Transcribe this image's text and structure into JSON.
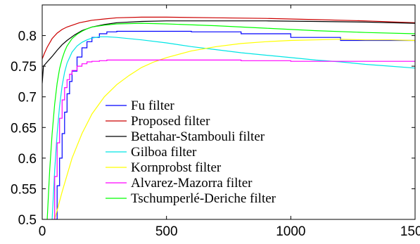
{
  "chart_data": {
    "type": "line",
    "title": "",
    "xlabel": "",
    "ylabel": "",
    "xlim": [
      0,
      1500
    ],
    "ylim": [
      0.5,
      0.85
    ],
    "xticks": [
      0,
      500,
      1000,
      1500
    ],
    "xtick_labels": [
      "0",
      "500",
      "1000",
      "1500"
    ],
    "yticks": [
      0.5,
      0.55,
      0.6,
      0.65,
      0.7,
      0.75,
      0.8
    ],
    "ytick_labels": [
      "0.5",
      "0.55",
      "0.6",
      "0.65",
      "0.7",
      "0.75",
      "0.8"
    ],
    "grid": false,
    "legend_position": "center",
    "series": [
      {
        "name": "Fu filter",
        "color": "#0000ff",
        "style": "step",
        "x": [
          50,
          60,
          70,
          80,
          90,
          100,
          110,
          120,
          140,
          160,
          180,
          200,
          230,
          260,
          300,
          400,
          600,
          800,
          1000,
          1200,
          1500
        ],
        "y": [
          0.5,
          0.555,
          0.6,
          0.64,
          0.675,
          0.705,
          0.725,
          0.742,
          0.765,
          0.78,
          0.79,
          0.797,
          0.803,
          0.806,
          0.807,
          0.807,
          0.806,
          0.803,
          0.797,
          0.792,
          0.788
        ]
      },
      {
        "name": "Proposed filter",
        "color": "#cc0000",
        "style": "line",
        "x": [
          0,
          10,
          20,
          40,
          60,
          80,
          100,
          150,
          200,
          250,
          300,
          400,
          500,
          700,
          900,
          1100,
          1300,
          1500
        ],
        "y": [
          0.762,
          0.772,
          0.781,
          0.795,
          0.804,
          0.81,
          0.814,
          0.821,
          0.825,
          0.827,
          0.829,
          0.83,
          0.83,
          0.829,
          0.828,
          0.826,
          0.824,
          0.821
        ]
      },
      {
        "name": "Bettahar-Stambouli filter",
        "color": "#000000",
        "style": "line",
        "x": [
          0,
          5,
          20,
          40,
          60,
          80,
          100,
          130,
          160,
          200,
          250,
          300,
          400,
          500,
          700,
          900,
          1100,
          1300,
          1500
        ],
        "y": [
          0.722,
          0.75,
          0.757,
          0.766,
          0.776,
          0.785,
          0.792,
          0.801,
          0.808,
          0.814,
          0.818,
          0.821,
          0.823,
          0.824,
          0.824,
          0.824,
          0.823,
          0.822,
          0.82
        ]
      },
      {
        "name": "Gilboa filter",
        "color": "#00e5e5",
        "style": "line",
        "x": [
          40,
          50,
          60,
          70,
          80,
          90,
          100,
          120,
          140,
          160,
          180,
          200,
          230,
          260,
          300,
          400,
          500,
          600,
          700,
          800,
          900,
          1000,
          1100,
          1200,
          1300,
          1400,
          1500
        ],
        "y": [
          0.5,
          0.58,
          0.64,
          0.685,
          0.718,
          0.74,
          0.755,
          0.773,
          0.783,
          0.789,
          0.793,
          0.796,
          0.798,
          0.798,
          0.797,
          0.793,
          0.788,
          0.782,
          0.777,
          0.772,
          0.768,
          0.764,
          0.76,
          0.757,
          0.753,
          0.75,
          0.747
        ]
      },
      {
        "name": "Kornprobst filter",
        "color": "#ffff00",
        "style": "line",
        "x": [
          50,
          80,
          120,
          160,
          200,
          250,
          300,
          350,
          400,
          450,
          500,
          600,
          700,
          800,
          900,
          1000,
          1100,
          1200,
          1300,
          1400,
          1500
        ],
        "y": [
          0.5,
          0.545,
          0.6,
          0.64,
          0.672,
          0.7,
          0.72,
          0.735,
          0.748,
          0.757,
          0.764,
          0.775,
          0.782,
          0.787,
          0.79,
          0.792,
          0.793,
          0.794,
          0.793,
          0.793,
          0.792
        ]
      },
      {
        "name": "Alvarez-Mazorra filter",
        "color": "#ff00ff",
        "style": "step",
        "x": [
          40,
          50,
          60,
          70,
          80,
          90,
          100,
          110,
          120,
          140,
          160,
          180,
          200,
          230,
          260,
          300,
          400,
          600,
          800,
          1000,
          1200,
          1500
        ],
        "y": [
          0.5,
          0.57,
          0.625,
          0.665,
          0.695,
          0.715,
          0.728,
          0.737,
          0.743,
          0.75,
          0.754,
          0.757,
          0.758,
          0.759,
          0.76,
          0.76,
          0.76,
          0.76,
          0.759,
          0.758,
          0.758,
          0.757
        ]
      },
      {
        "name": "Tschumperlé-Deriche filter",
        "color": "#00ff00",
        "style": "line",
        "x": [
          20,
          30,
          40,
          50,
          60,
          70,
          80,
          90,
          100,
          120,
          140,
          160,
          180,
          200,
          250,
          300,
          400,
          500,
          700,
          900,
          1100,
          1300,
          1500
        ],
        "y": [
          0.5,
          0.58,
          0.64,
          0.688,
          0.722,
          0.746,
          0.762,
          0.774,
          0.783,
          0.795,
          0.802,
          0.807,
          0.811,
          0.814,
          0.817,
          0.819,
          0.82,
          0.819,
          0.816,
          0.812,
          0.808,
          0.805,
          0.803
        ]
      }
    ]
  }
}
